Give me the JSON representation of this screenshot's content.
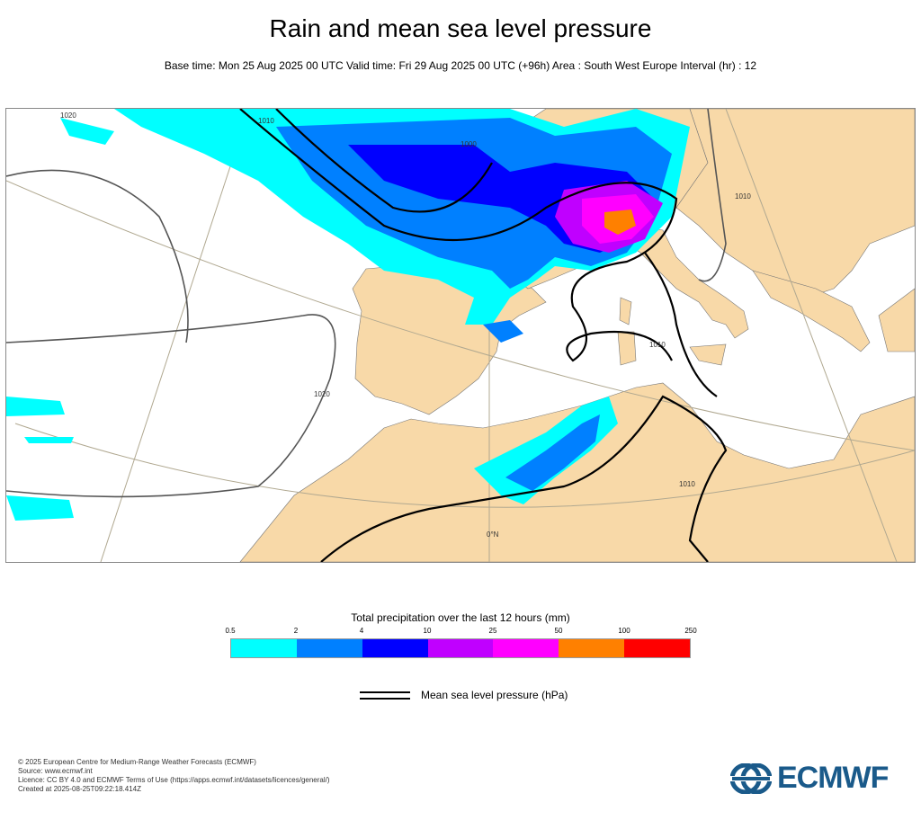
{
  "title": "Rain and mean sea level pressure",
  "subtitle": "Base time: Mon 25 Aug 2025 00 UTC Valid time: Fri 29 Aug 2025 00 UTC (+96h) Area : South West Europe Interval (hr) : 12",
  "map": {
    "isobar_labels": [
      "1020",
      "1010",
      "1000",
      "1010",
      "1020",
      "1010",
      "1010"
    ],
    "grid_label": "0°N"
  },
  "legend": {
    "title": "Total precipitation over the last 12 hours (mm)",
    "ticks": [
      "0.5",
      "2",
      "4",
      "10",
      "25",
      "50",
      "100",
      "250"
    ],
    "colors": [
      "#00ffff",
      "#0080ff",
      "#0000ff",
      "#c000ff",
      "#ff00ff",
      "#ff8000",
      "#ff0000"
    ]
  },
  "mslp_legend": "Mean sea level pressure (hPa)",
  "footer": {
    "line1": "© 2025 European Centre for Medium-Range Weather Forecasts (ECMWF)",
    "line2": "Source: www.ecmwf.int",
    "line3": "Licence: CC BY 4.0 and ECMWF Terms of Use (https://apps.ecmwf.int/datasets/licences/general/)",
    "line4": "Created at 2025-08-25T09:22:18.414Z"
  },
  "logo": "ECMWF",
  "colors": {
    "land": "#f8d9a8",
    "sea": "#ffffff",
    "logo": "#1a5a8a"
  }
}
